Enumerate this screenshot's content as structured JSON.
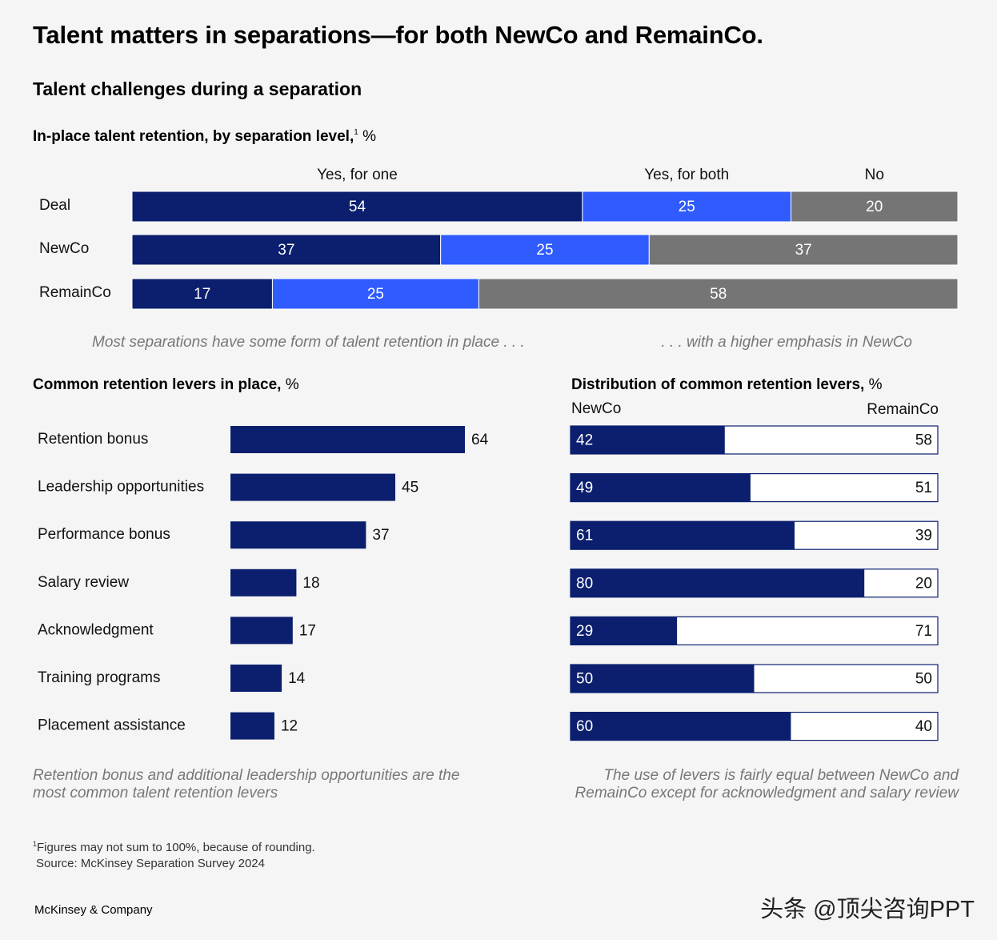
{
  "page": {
    "title": "Talent matters in separations—for both NewCo and RemainCo.",
    "subtitle": "Talent challenges during a separation",
    "footnote": "Figures may not sum to 100%, because of rounding.",
    "footnote_marker": "1",
    "source": "Source: McKinsey Separation Survey 2024",
    "brand": "McKinsey & Company",
    "watermark": "头条 @顶尖咨询PPT"
  },
  "colors": {
    "navy": "#0b1f6e",
    "blue": "#2f5bff",
    "gray": "#757575",
    "white": "#ffffff"
  },
  "chart_data": [
    {
      "type": "bar",
      "stacked": true,
      "orientation": "horizontal",
      "title": "In-place talent retention, by separation level,",
      "title_sup": "1",
      "unit": "%",
      "categories": [
        "Deal",
        "NewCo",
        "RemainCo"
      ],
      "series": [
        {
          "name": "Yes, for one",
          "values": [
            54,
            37,
            17
          ]
        },
        {
          "name": "Yes, for both",
          "values": [
            25,
            25,
            25
          ]
        },
        {
          "name": "No",
          "values": [
            20,
            37,
            58
          ]
        }
      ],
      "annotations": [
        "Most separations have some form of talent retention in place . . .",
        ". . . with a higher emphasis in NewCo"
      ]
    },
    {
      "type": "bar",
      "orientation": "horizontal",
      "title": "Common retention levers in place,",
      "unit": "%",
      "categories": [
        "Retention bonus",
        "Leadership opportunities",
        "Performance bonus",
        "Salary review",
        "Acknowledgment",
        "Training programs",
        "Placement assistance"
      ],
      "values": [
        64,
        45,
        37,
        18,
        17,
        14,
        12
      ],
      "annotation": "Retention bonus and additional leadership opportunities are the most common talent retention levers"
    },
    {
      "type": "bar",
      "stacked": true,
      "orientation": "horizontal",
      "title": "Distribution of common retention levers,",
      "unit": "%",
      "categories": [
        "Retention bonus",
        "Leadership opportunities",
        "Performance bonus",
        "Salary review",
        "Acknowledgment",
        "Training programs",
        "Placement assistance"
      ],
      "series": [
        {
          "name": "NewCo",
          "values": [
            42,
            49,
            61,
            80,
            29,
            50,
            60
          ]
        },
        {
          "name": "RemainCo",
          "values": [
            58,
            51,
            39,
            20,
            71,
            50,
            40
          ]
        }
      ],
      "annotation": "The use of levers is fairly equal between NewCo and RemainCo except for acknowledgment and salary review"
    }
  ]
}
